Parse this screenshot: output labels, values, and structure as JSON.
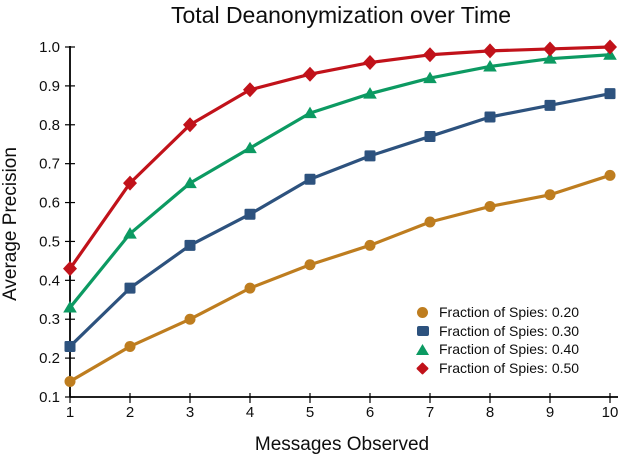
{
  "chart_data": {
    "type": "line",
    "title": "Total Deanonymization over Time",
    "xlabel": "Messages Observed",
    "ylabel": "Average Precision",
    "background": "#ffffff",
    "axis_color": "#000000",
    "grid": false,
    "legend_position": "right-center-inside",
    "legend_border": false,
    "xlim": [
      1,
      10
    ],
    "ylim": [
      0.1,
      1.0
    ],
    "xticks": [
      1,
      2,
      3,
      4,
      5,
      6,
      7,
      8,
      9,
      10
    ],
    "ytick_labels": [
      "0.1",
      "0.2",
      "0.3",
      "0.4",
      "0.5",
      "0.6",
      "0.7",
      "0.8",
      "0.9",
      "1.0"
    ],
    "yticks": [
      0.1,
      0.2,
      0.3,
      0.4,
      0.5,
      0.6,
      0.7,
      0.8,
      0.9,
      1.0
    ],
    "x": [
      1,
      2,
      3,
      4,
      5,
      6,
      7,
      8,
      9,
      10
    ],
    "series": [
      {
        "name": "Fraction of Spies: 0.20",
        "color": "#BE7D1F",
        "marker": "circle",
        "values": [
          0.14,
          0.23,
          0.3,
          0.38,
          0.44,
          0.49,
          0.55,
          0.59,
          0.62,
          0.67
        ]
      },
      {
        "name": "Fraction of Spies: 0.30",
        "color": "#2D527E",
        "marker": "square",
        "values": [
          0.23,
          0.38,
          0.49,
          0.57,
          0.66,
          0.72,
          0.77,
          0.82,
          0.85,
          0.88
        ]
      },
      {
        "name": "Fraction of Spies: 0.40",
        "color": "#0C9A62",
        "marker": "triangle",
        "values": [
          0.33,
          0.52,
          0.65,
          0.74,
          0.83,
          0.88,
          0.92,
          0.95,
          0.97,
          0.98
        ]
      },
      {
        "name": "Fraction of Spies: 0.50",
        "color": "#C1121A",
        "marker": "diamond",
        "values": [
          0.43,
          0.65,
          0.8,
          0.89,
          0.93,
          0.96,
          0.98,
          0.99,
          0.995,
          1.0
        ]
      }
    ]
  }
}
